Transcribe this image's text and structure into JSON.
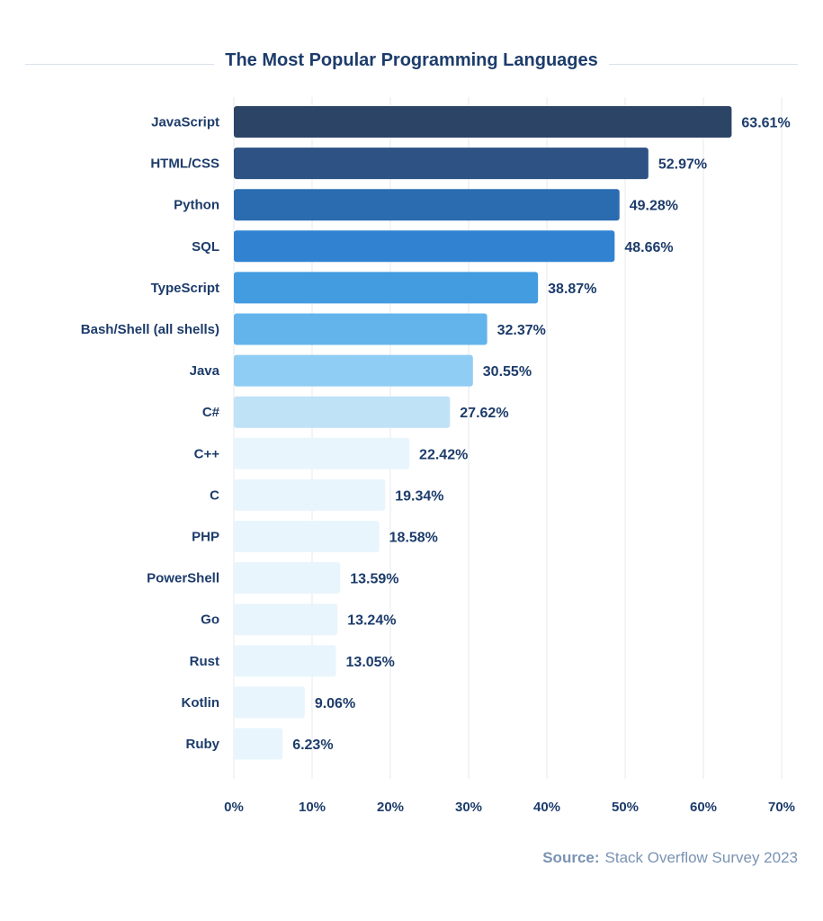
{
  "chart_data": {
    "type": "bar",
    "orientation": "horizontal",
    "title": "The Most Popular Programming Languages",
    "categories": [
      "JavaScript",
      "HTML/CSS",
      "Python",
      "SQL",
      "TypeScript",
      "Bash/Shell (all shells)",
      "Java",
      "C#",
      "C++",
      "C",
      "PHP",
      "PowerShell",
      "Go",
      "Rust",
      "Kotlin",
      "Ruby"
    ],
    "values": [
      63.61,
      52.97,
      49.28,
      48.66,
      38.87,
      32.37,
      30.55,
      27.62,
      22.42,
      19.34,
      18.58,
      13.59,
      13.24,
      13.05,
      9.06,
      6.23
    ],
    "data_labels": [
      "63.61%",
      "52.97%",
      "49.28%",
      "48.66%",
      "38.87%",
      "32.37%",
      "30.55%",
      "27.62%",
      "22.42%",
      "19.34%",
      "18.58%",
      "13.59%",
      "13.24%",
      "13.05%",
      "9.06%",
      "6.23%"
    ],
    "bar_colors": [
      "#2c4466",
      "#2d5283",
      "#2b6cb0",
      "#3183d2",
      "#439be0",
      "#64b4ec",
      "#8fcdf4",
      "#bfe2f7",
      "#e8f5fd",
      "#e8f5fd",
      "#e8f5fd",
      "#e8f5fd",
      "#e8f5fd",
      "#e8f5fd",
      "#e8f5fd",
      "#e8f5fd"
    ],
    "xlim": [
      0,
      70
    ],
    "xticks": [
      "0%",
      "10%",
      "20%",
      "30%",
      "40%",
      "50%",
      "60%",
      "70%"
    ],
    "grid": "vertical",
    "xlabel": "",
    "ylabel": ""
  },
  "source": {
    "label": "Source:",
    "text": "Stack Overflow Survey 2023"
  },
  "colors": {
    "text": "#1d3c6b",
    "grid": "#eef1f4",
    "source": "#7a93b3"
  }
}
